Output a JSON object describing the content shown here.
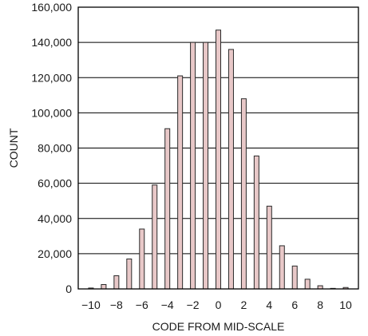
{
  "chart_data": {
    "type": "bar",
    "xlabel": "CODE FROM MID-SCALE",
    "ylabel": "COUNT",
    "ylim": [
      0,
      160000
    ],
    "xlim": [
      -11,
      11
    ],
    "yticks": [
      0,
      20000,
      40000,
      60000,
      80000,
      100000,
      120000,
      140000,
      160000
    ],
    "ytick_labels": [
      "0",
      "20,000",
      "40,000",
      "60,000",
      "80,000",
      "100,000",
      "120,000",
      "140,000",
      "160,000"
    ],
    "xticks": [
      -10,
      -8,
      -6,
      -4,
      -2,
      0,
      2,
      4,
      6,
      8,
      10
    ],
    "xtick_labels": [
      "−10",
      "−8",
      "−6",
      "−4",
      "−2",
      "0",
      "2",
      "4",
      "6",
      "8",
      "10"
    ],
    "grid": "horizontal",
    "x": [
      -10,
      -9,
      -8,
      -7,
      -6,
      -5,
      -4,
      -3,
      -2,
      -1,
      0,
      1,
      2,
      3,
      4,
      5,
      6,
      7,
      8,
      9,
      10
    ],
    "values": [
      500,
      2500,
      7500,
      17000,
      34000,
      59000,
      91000,
      121000,
      140000,
      140000,
      147000,
      136000,
      108000,
      75500,
      47000,
      24500,
      13000,
      5500,
      1800,
      300,
      800
    ],
    "colors": {
      "bar_fill": "#e8c8c8",
      "bar_stroke": "#2a2a2a",
      "grid": "#000000",
      "frame": "#000000"
    }
  }
}
